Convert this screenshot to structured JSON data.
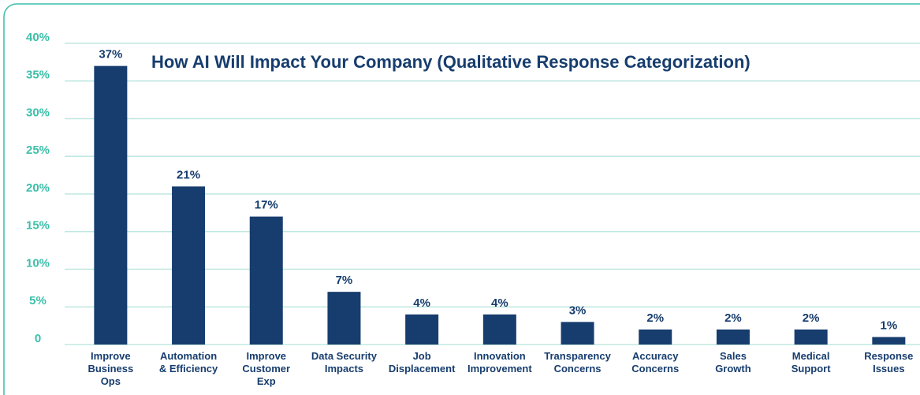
{
  "chart_data": {
    "type": "bar",
    "title": "How AI Will Impact Your Company (Qualitative Response Categorization)",
    "categories": [
      "Improve\nBusiness\nOps",
      "Automation\n& Efficiency",
      "Improve\nCustomer\nExp",
      "Data Security\nImpacts",
      "Job\nDisplacement",
      "Innovation\nImprovement",
      "Transparency\nConcerns",
      "Accuracy\nConcerns",
      "Sales\nGrowth",
      "Medical\nSupport",
      "Response\nIssues"
    ],
    "values": [
      37,
      21,
      17,
      7,
      4,
      4,
      3,
      2,
      2,
      2,
      1
    ],
    "value_labels": [
      "37%",
      "21%",
      "17%",
      "7%",
      "4%",
      "4%",
      "3%",
      "2%",
      "2%",
      "2%",
      "1%"
    ],
    "color": "#173d6e",
    "ylim": [
      0,
      40
    ],
    "yticks": [
      0,
      {
        "value": 5,
        "label": "5%"
      },
      {
        "value": 10,
        "label": "10%"
      },
      {
        "value": 15,
        "label": "15%"
      },
      {
        "value": 20,
        "label": "20%"
      },
      {
        "value": 25,
        "label": "25%"
      },
      {
        "value": 30,
        "label": "30%"
      },
      {
        "value": 35,
        "label": "35%"
      },
      {
        "value": 40,
        "label": "40%"
      }
    ],
    "grid": true
  }
}
